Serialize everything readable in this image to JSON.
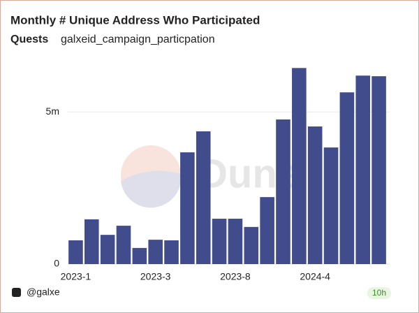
{
  "chart_data": {
    "type": "bar",
    "title": "Monthly # Unique Address Who Participated",
    "subtitle_label": "Quests",
    "subtitle": "galxeid_campaign_particpation",
    "watermark": "Dune",
    "footer": "@galxe",
    "badge": "10h",
    "categories": [
      "2023-1",
      null,
      null,
      null,
      null,
      "2023-3",
      null,
      null,
      null,
      null,
      "2023-8",
      null,
      null,
      null,
      null,
      "2024-4",
      null,
      null,
      null,
      null
    ],
    "values": [
      780000,
      1470000,
      960000,
      1260000,
      530000,
      800000,
      780000,
      3670000,
      4360000,
      1490000,
      1490000,
      1220000,
      2200000,
      4750000,
      6440000,
      4520000,
      3830000,
      5640000,
      6190000,
      6170000
    ],
    "color": "#414c8c",
    "ylim": [
      0,
      6700000
    ],
    "yticks": [
      0,
      {
        "value": 5000000,
        "label": "5m"
      }
    ],
    "grid": true
  }
}
